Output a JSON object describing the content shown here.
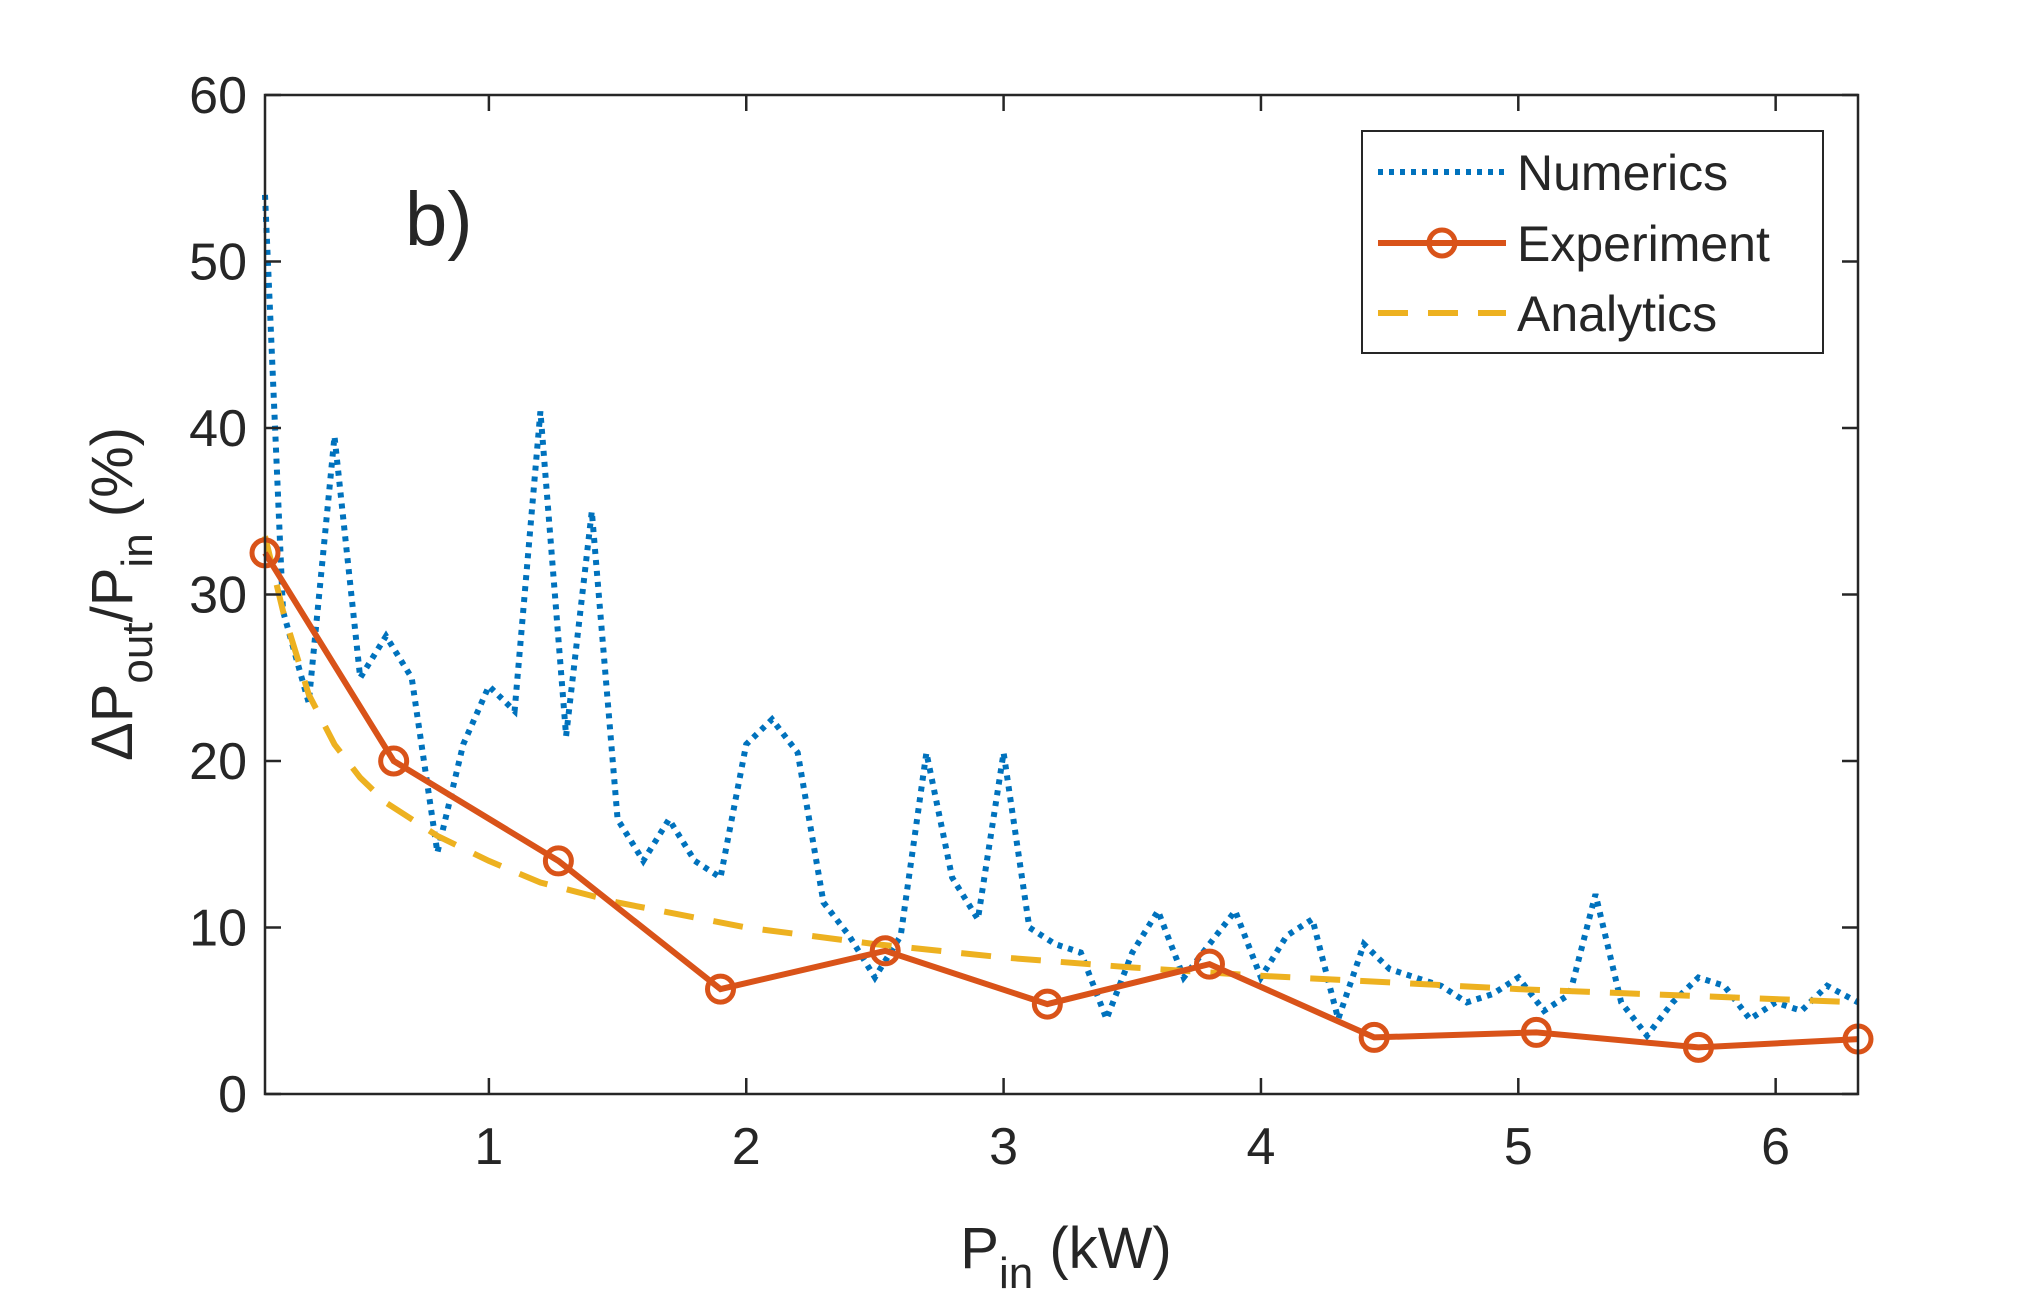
{
  "chart_data": {
    "type": "line",
    "panel_label": "b)",
    "xlabel": {
      "main": "P",
      "sub": "in",
      "tail": " (kW)"
    },
    "ylabel": {
      "delta": "ΔP",
      "sub1": "out",
      "mid": "/P",
      "sub2": "in",
      "tail": " (%)"
    },
    "xlim": [
      0.13,
      6.32
    ],
    "ylim": [
      0,
      60
    ],
    "xticks": [
      1,
      2,
      3,
      4,
      5,
      6
    ],
    "xtick_labels": [
      "1",
      "2",
      "3",
      "4",
      "5",
      "6"
    ],
    "yticks": [
      0,
      10,
      20,
      30,
      40,
      50,
      60
    ],
    "ytick_labels": [
      "0",
      "10",
      "20",
      "30",
      "40",
      "50",
      "60"
    ],
    "legend_position": "top-right",
    "colors": {
      "numerics": "#0072BD",
      "experiment": "#D95319",
      "analytics": "#EDB120",
      "axis": "#262626"
    },
    "series": [
      {
        "name": "Numerics",
        "style": "dotted",
        "x": [
          0.13,
          0.2,
          0.3,
          0.4,
          0.5,
          0.6,
          0.7,
          0.8,
          0.9,
          1.0,
          1.1,
          1.2,
          1.3,
          1.4,
          1.5,
          1.6,
          1.7,
          1.8,
          1.9,
          2.0,
          2.1,
          2.2,
          2.3,
          2.4,
          2.5,
          2.6,
          2.7,
          2.8,
          2.9,
          3.0,
          3.1,
          3.2,
          3.3,
          3.4,
          3.5,
          3.6,
          3.7,
          3.8,
          3.9,
          4.0,
          4.1,
          4.2,
          4.3,
          4.4,
          4.5,
          4.6,
          4.7,
          4.8,
          4.9,
          5.0,
          5.1,
          5.2,
          5.3,
          5.4,
          5.5,
          5.6,
          5.7,
          5.8,
          5.9,
          6.0,
          6.1,
          6.2,
          6.32
        ],
        "values": [
          54,
          29,
          23.5,
          39.5,
          25,
          27.5,
          25,
          14.5,
          21,
          24.5,
          23,
          41,
          21.5,
          35,
          16.5,
          14,
          16.5,
          14,
          13,
          21,
          22.5,
          20.5,
          11.5,
          9.5,
          7,
          9.5,
          20.5,
          13,
          10.5,
          20.5,
          10,
          9,
          8.5,
          4.5,
          8.5,
          11,
          7,
          9,
          11,
          7,
          9.5,
          10.5,
          4.5,
          9,
          7.5,
          7,
          6.5,
          5.5,
          6,
          7,
          5,
          6,
          12,
          5.5,
          3.5,
          5.5,
          7,
          6.5,
          4.5,
          5.5,
          5,
          6.5,
          5.5
        ]
      },
      {
        "name": "Experiment",
        "style": "solid-circle",
        "x": [
          0.13,
          0.63,
          1.27,
          1.9,
          2.54,
          3.17,
          3.8,
          4.44,
          5.07,
          5.7,
          6.32
        ],
        "values": [
          32.5,
          20,
          14,
          6.3,
          8.6,
          5.4,
          7.8,
          3.4,
          3.7,
          2.8,
          3.3
        ]
      },
      {
        "name": "Analytics",
        "style": "dashed",
        "x": [
          0.13,
          0.2,
          0.3,
          0.4,
          0.5,
          0.6,
          0.8,
          1.0,
          1.2,
          1.5,
          2.0,
          2.5,
          3.0,
          3.5,
          4.0,
          4.5,
          5.0,
          5.5,
          6.0,
          6.32
        ],
        "values": [
          33.5,
          29,
          24,
          21,
          19,
          17.5,
          15.5,
          14,
          12.7,
          11.5,
          10,
          9,
          8.2,
          7.6,
          7.1,
          6.7,
          6.3,
          6.0,
          5.7,
          5.5
        ]
      }
    ]
  }
}
